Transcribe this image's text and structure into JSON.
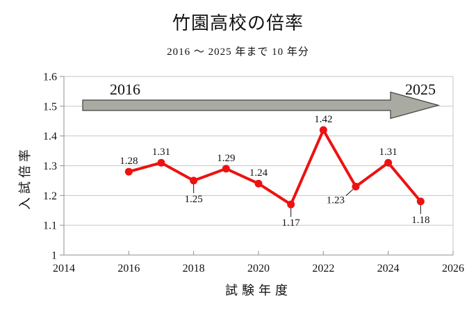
{
  "chart_data": {
    "type": "line",
    "title": "竹園高校の倍率",
    "subtitle": "2016 ～ 2025 年まで 10 年分",
    "xlabel": "試験年度",
    "ylabel": "入試倍率",
    "x": [
      2016,
      2017,
      2018,
      2019,
      2020,
      2021,
      2022,
      2023,
      2024,
      2025
    ],
    "values": [
      1.28,
      1.31,
      1.25,
      1.29,
      1.24,
      1.17,
      1.42,
      1.23,
      1.31,
      1.18
    ],
    "xlim": [
      2014,
      2026
    ],
    "ylim": [
      1.0,
      1.6
    ],
    "x_ticks": [
      2014,
      2016,
      2018,
      2020,
      2022,
      2024,
      2026
    ],
    "y_ticks": [
      1.0,
      1.1,
      1.2,
      1.3,
      1.4,
      1.5,
      1.6
    ],
    "grid": "horizontal",
    "legend": "none",
    "marker": "circle",
    "label_placement": [
      "above",
      "above",
      "below",
      "above",
      "above",
      "below",
      "above",
      "below-left",
      "above",
      "below"
    ],
    "trend_arrow": {
      "start_label": "2016",
      "end_label": "2025"
    },
    "colors": {
      "series": "#ee1111",
      "arrow_fill": "#a9aaa2",
      "arrow_stroke": "#404040",
      "grid": "#c6c6c6",
      "axis": "#8f8f8f",
      "text": "#111111"
    }
  }
}
